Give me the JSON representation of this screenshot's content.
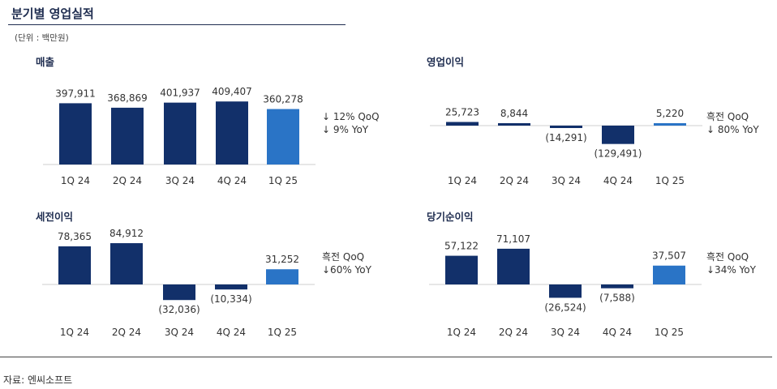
{
  "header": {
    "title": "분기별 영업실적",
    "unit": "(단위 : 백만원)"
  },
  "footer": {
    "source": "자료: 엔씨소프트"
  },
  "colors": {
    "dark": "#12306a",
    "highlight": "#2a74c6"
  },
  "chart_data": [
    {
      "type": "bar",
      "title": "매출",
      "categories": [
        "1Q 24",
        "2Q 24",
        "3Q 24",
        "4Q 24",
        "1Q 25"
      ],
      "values": [
        397911,
        368869,
        401937,
        409407,
        360278
      ],
      "value_labels": [
        "397,911",
        "368,869",
        "401,937",
        "409,407",
        "360,278"
      ],
      "notes": [
        "↓ 12% QoQ",
        "↓ 9% YoY"
      ]
    },
    {
      "type": "bar",
      "title": "영업이익",
      "categories": [
        "1Q 24",
        "2Q 24",
        "3Q 24",
        "4Q 24",
        "1Q 25"
      ],
      "values": [
        25723,
        8844,
        -14291,
        -129491,
        5220
      ],
      "value_labels": [
        "25,723",
        "8,844",
        "(14,291)",
        "(129,491)",
        "5,220"
      ],
      "notes": [
        "흑전 QoQ",
        "↓ 80% YoY"
      ]
    },
    {
      "type": "bar",
      "title": "세전이익",
      "categories": [
        "1Q 24",
        "2Q 24",
        "3Q 24",
        "4Q 24",
        "1Q 25"
      ],
      "values": [
        78365,
        84912,
        -32036,
        -10334,
        31252
      ],
      "value_labels": [
        "78,365",
        "84,912",
        "(32,036)",
        "(10,334)",
        "31,252"
      ],
      "notes": [
        "흑전 QoQ",
        "↓60% YoY"
      ]
    },
    {
      "type": "bar",
      "title": "당기순이익",
      "categories": [
        "1Q 24",
        "2Q 24",
        "3Q 24",
        "4Q 24",
        "1Q 25"
      ],
      "values": [
        57122,
        71107,
        -26524,
        -7588,
        37507
      ],
      "value_labels": [
        "57,122",
        "71,107",
        "(26,524)",
        "(7,588)",
        "37,507"
      ],
      "notes": [
        "흑전 QoQ",
        "↓34% YoY"
      ]
    }
  ]
}
